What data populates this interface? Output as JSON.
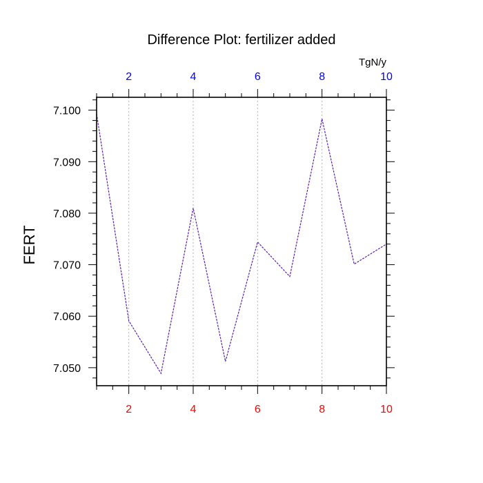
{
  "chart_data": {
    "type": "line",
    "title": "Difference Plot: fertilizer added",
    "ylabel": "FERT",
    "top_axis_units": "TgN/y",
    "xlim": [
      1,
      10
    ],
    "ylim": [
      7.0465,
      7.1025
    ],
    "x_ticks": [
      2,
      4,
      6,
      8,
      10
    ],
    "x_tick_labels": [
      "2",
      "4",
      "6",
      "8",
      "10"
    ],
    "y_ticks": [
      7.05,
      7.06,
      7.07,
      7.08,
      7.09,
      7.1
    ],
    "y_tick_labels": [
      "7.050",
      "7.060",
      "7.070",
      "7.080",
      "7.090",
      "7.100"
    ],
    "grid": "vertical dotted at major x ticks",
    "colors": {
      "line": "#5a1fb0",
      "top_tick_labels": "#0000ff",
      "bottom_tick_labels": "#ff0000",
      "grid": "#b0b0b0"
    },
    "series": [
      {
        "x": [
          1,
          2,
          3,
          4,
          5,
          6,
          7,
          8,
          9,
          10
        ],
        "values": [
          7.0993,
          7.0591,
          7.0489,
          7.081,
          7.0512,
          7.0744,
          7.0677,
          7.0983,
          7.0701,
          7.074
        ]
      }
    ]
  }
}
